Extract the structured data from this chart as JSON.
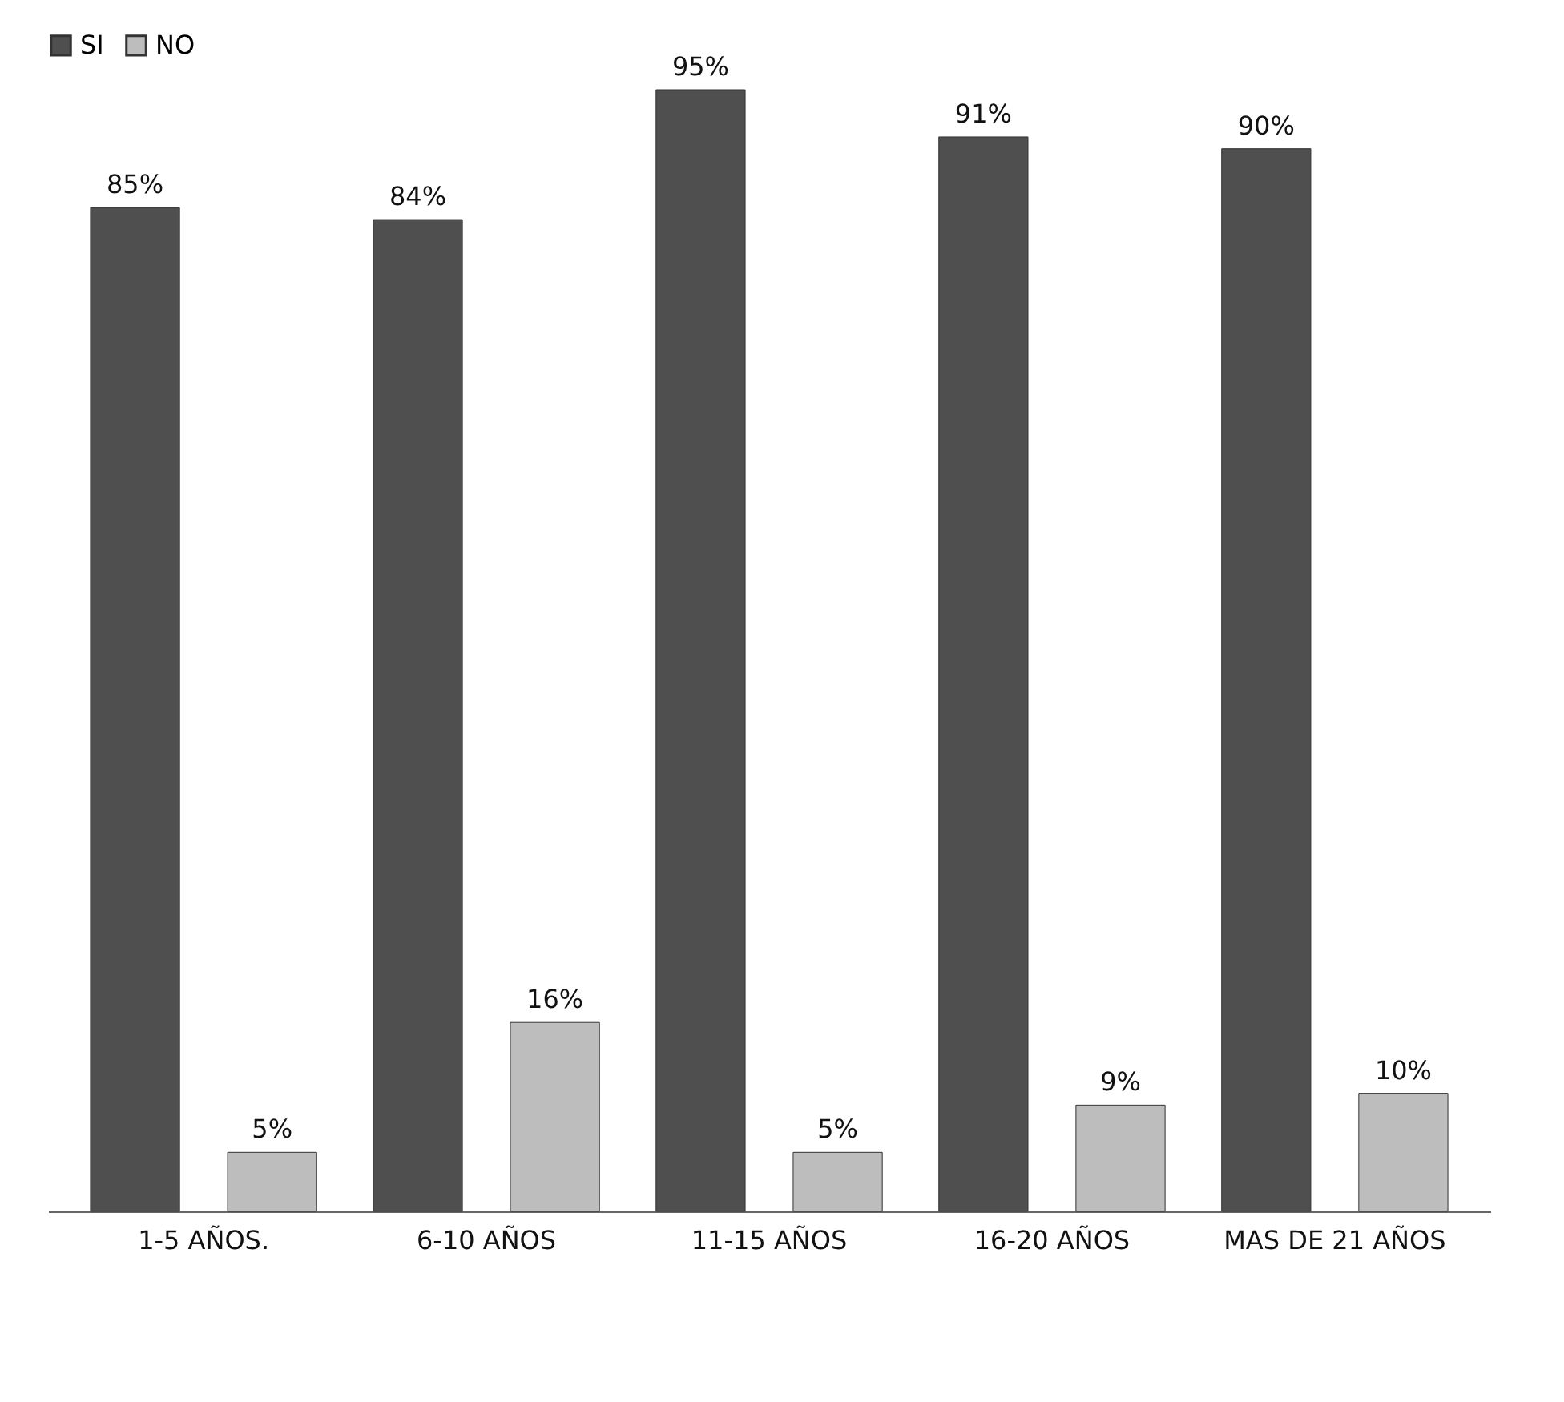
{
  "chart_data": {
    "type": "bar",
    "categories": [
      "1-5 AÑOS.",
      "6-10 AÑOS",
      "11-15 AÑOS",
      "16-20 AÑOS",
      "MAS DE 21 AÑOS"
    ],
    "series": [
      {
        "name": "SI",
        "color": "#4f4f4f",
        "values": [
          85,
          84,
          95,
          91,
          90
        ],
        "value_labels": [
          "85%",
          "84%",
          "95%",
          "91%",
          "90%"
        ]
      },
      {
        "name": "NO",
        "color": "#bdbdbd",
        "values": [
          5,
          16,
          5,
          9,
          10
        ],
        "value_labels": [
          "5%",
          "16%",
          "5%",
          "9%",
          "10%"
        ]
      }
    ],
    "legend": "top",
    "grid": false
  }
}
